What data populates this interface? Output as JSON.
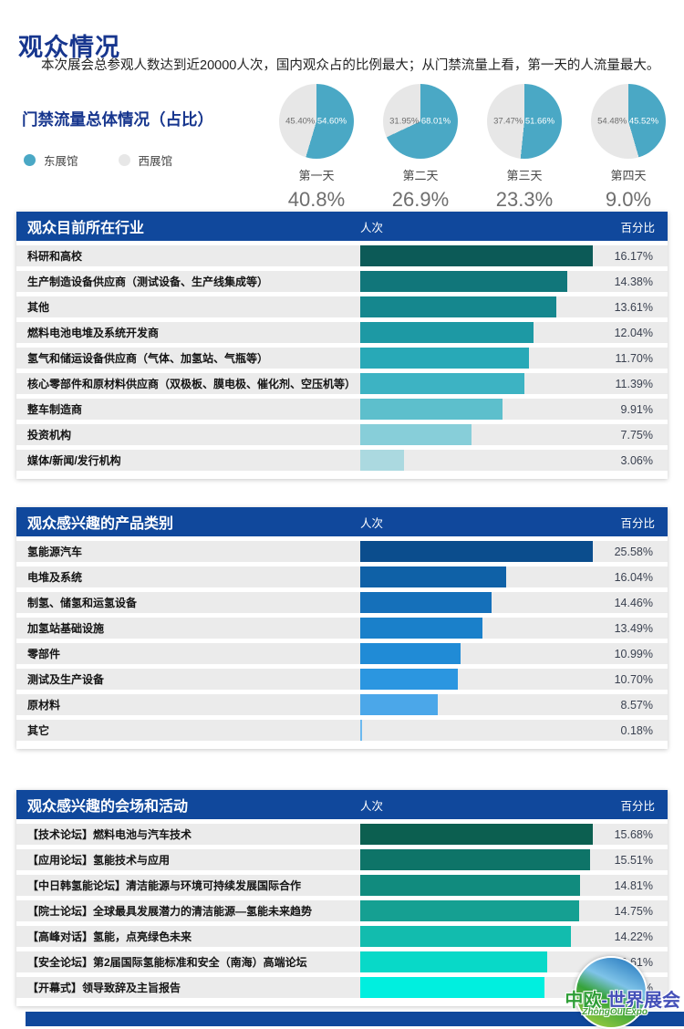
{
  "page": {
    "title": "观众情况",
    "subtitle": "本次展会总参观人数达到近20000人次，国内观众占的比例最大；从门禁流量上看，第一天的人流量最大。"
  },
  "theme": {
    "header_blue": "#10489c",
    "title_blue": "#17368e",
    "row_gray": "#ebebeb",
    "east_hall_teal": "#4aa8c5",
    "west_hall_gray": "#e7e7e7"
  },
  "logo": {
    "cn_part1": "中欧",
    "cn_part2": "-世界展会",
    "en": "ZhongOu Expo"
  },
  "chart_data": [
    {
      "type": "pie",
      "title": "门禁流量总体情况（占比）",
      "legend": [
        {
          "label": "东展馆",
          "color": "#4aa8c5"
        },
        {
          "label": "西展馆",
          "color": "#e7e7e7"
        }
      ],
      "pies": [
        {
          "label": "第一天",
          "west_pct": 45.4,
          "east_pct": 54.6,
          "west_label": "45.40%",
          "east_label": "54.60%",
          "total_label": "40.8%"
        },
        {
          "label": "第二天",
          "west_pct": 31.95,
          "east_pct": 68.01,
          "west_label": "31.95%",
          "east_label": "68.01%",
          "total_label": "26.9%"
        },
        {
          "label": "第三天",
          "west_pct": 37.47,
          "east_pct": 51.66,
          "west_label": "37.47%",
          "east_label": "51.66%",
          "total_label": "23.3%"
        },
        {
          "label": "第四天",
          "west_pct": 54.48,
          "east_pct": 45.52,
          "west_label": "54.48%",
          "east_label": "45.52%",
          "total_label": "9.0%"
        }
      ]
    },
    {
      "type": "bar",
      "title": "观众目前所在行业",
      "col_bar_header": "人次",
      "col_pct_header": "百分比",
      "xlim": [
        0,
        16.17
      ],
      "rows": [
        {
          "label": "科研和高校",
          "value": 16.17,
          "pct_label": "16.17%",
          "color": "#0c5a57"
        },
        {
          "label": "生产制造设备供应商（测试设备、生产线集成等）",
          "value": 14.38,
          "pct_label": "14.38%",
          "color": "#11767a"
        },
        {
          "label": "其他",
          "value": 13.61,
          "pct_label": "13.61%",
          "color": "#15878e"
        },
        {
          "label": "燃料电池电堆及系统开发商",
          "value": 12.04,
          "pct_label": "12.04%",
          "color": "#1d99a4"
        },
        {
          "label": "氢气和储运设备供应商（气体、加氢站、气瓶等）",
          "value": 11.7,
          "pct_label": "11.70%",
          "color": "#28a9b7"
        },
        {
          "label": "核心零部件和原材料供应商（双极板、膜电极、催化剂、空压机等）",
          "value": 11.39,
          "pct_label": "11.39%",
          "color": "#3db3c3"
        },
        {
          "label": "整车制造商",
          "value": 9.91,
          "pct_label": "9.91%",
          "color": "#5dbfcc"
        },
        {
          "label": "投资机构",
          "value": 7.75,
          "pct_label": "7.75%",
          "color": "#87ced9"
        },
        {
          "label": "媒体/新闻/发行机构",
          "value": 3.06,
          "pct_label": "3.06%",
          "color": "#abd9e0"
        }
      ]
    },
    {
      "type": "bar",
      "title": "观众感兴趣的产品类别",
      "col_bar_header": "人次",
      "col_pct_header": "百分比",
      "xlim": [
        0,
        25.58
      ],
      "rows": [
        {
          "label": "氢能源汽车",
          "value": 25.58,
          "pct_label": "25.58%",
          "color": "#0b4d8d"
        },
        {
          "label": "电堆及系统",
          "value": 16.04,
          "pct_label": "16.04%",
          "color": "#0f61a7"
        },
        {
          "label": "制氢、储氢和运氢设备",
          "value": 14.46,
          "pct_label": "14.46%",
          "color": "#1570ba"
        },
        {
          "label": "加氢站基础设施",
          "value": 13.49,
          "pct_label": "13.49%",
          "color": "#1a80ca"
        },
        {
          "label": "零部件",
          "value": 10.99,
          "pct_label": "10.99%",
          "color": "#208bd6"
        },
        {
          "label": "测试及生产设备",
          "value": 10.7,
          "pct_label": "10.70%",
          "color": "#2b96e0"
        },
        {
          "label": "原材料",
          "value": 8.57,
          "pct_label": "8.57%",
          "color": "#4ba7e9"
        },
        {
          "label": "其它",
          "value": 0.18,
          "pct_label": "0.18%",
          "color": "#6cb9ef"
        }
      ]
    },
    {
      "type": "bar",
      "title": "观众感兴趣的会场和活动",
      "col_bar_header": "人次",
      "col_pct_header": "百分比",
      "xlim": [
        0,
        15.68
      ],
      "rows": [
        {
          "label": "【技术论坛】燃料电池与汽车技术",
          "value": 15.68,
          "pct_label": "15.68%",
          "color": "#0c5f50"
        },
        {
          "label": "【应用论坛】氢能技术与应用",
          "value": 15.51,
          "pct_label": "15.51%",
          "color": "#0e7468"
        },
        {
          "label": "【中日韩氢能论坛】清洁能源与环境可持续发展国际合作",
          "value": 14.81,
          "pct_label": "14.81%",
          "color": "#118b7e"
        },
        {
          "label": "【院士论坛】全球最具发展潜力的清洁能源—氢能未来趋势",
          "value": 14.75,
          "pct_label": "14.75%",
          "color": "#15a092"
        },
        {
          "label": "【高峰对话】氢能，点亮绿色未来",
          "value": 14.22,
          "pct_label": "14.22%",
          "color": "#12bcae"
        },
        {
          "label": "【安全论坛】第2届国际氢能标准和安全（南海）高端论坛",
          "value": 12.61,
          "pct_label": "12.61%",
          "color": "#08d9c8"
        },
        {
          "label": "【开幕式】领导致辞及主旨报告",
          "value": 12.41,
          "pct_label": "12.41%",
          "color": "#00efdf"
        }
      ]
    }
  ]
}
